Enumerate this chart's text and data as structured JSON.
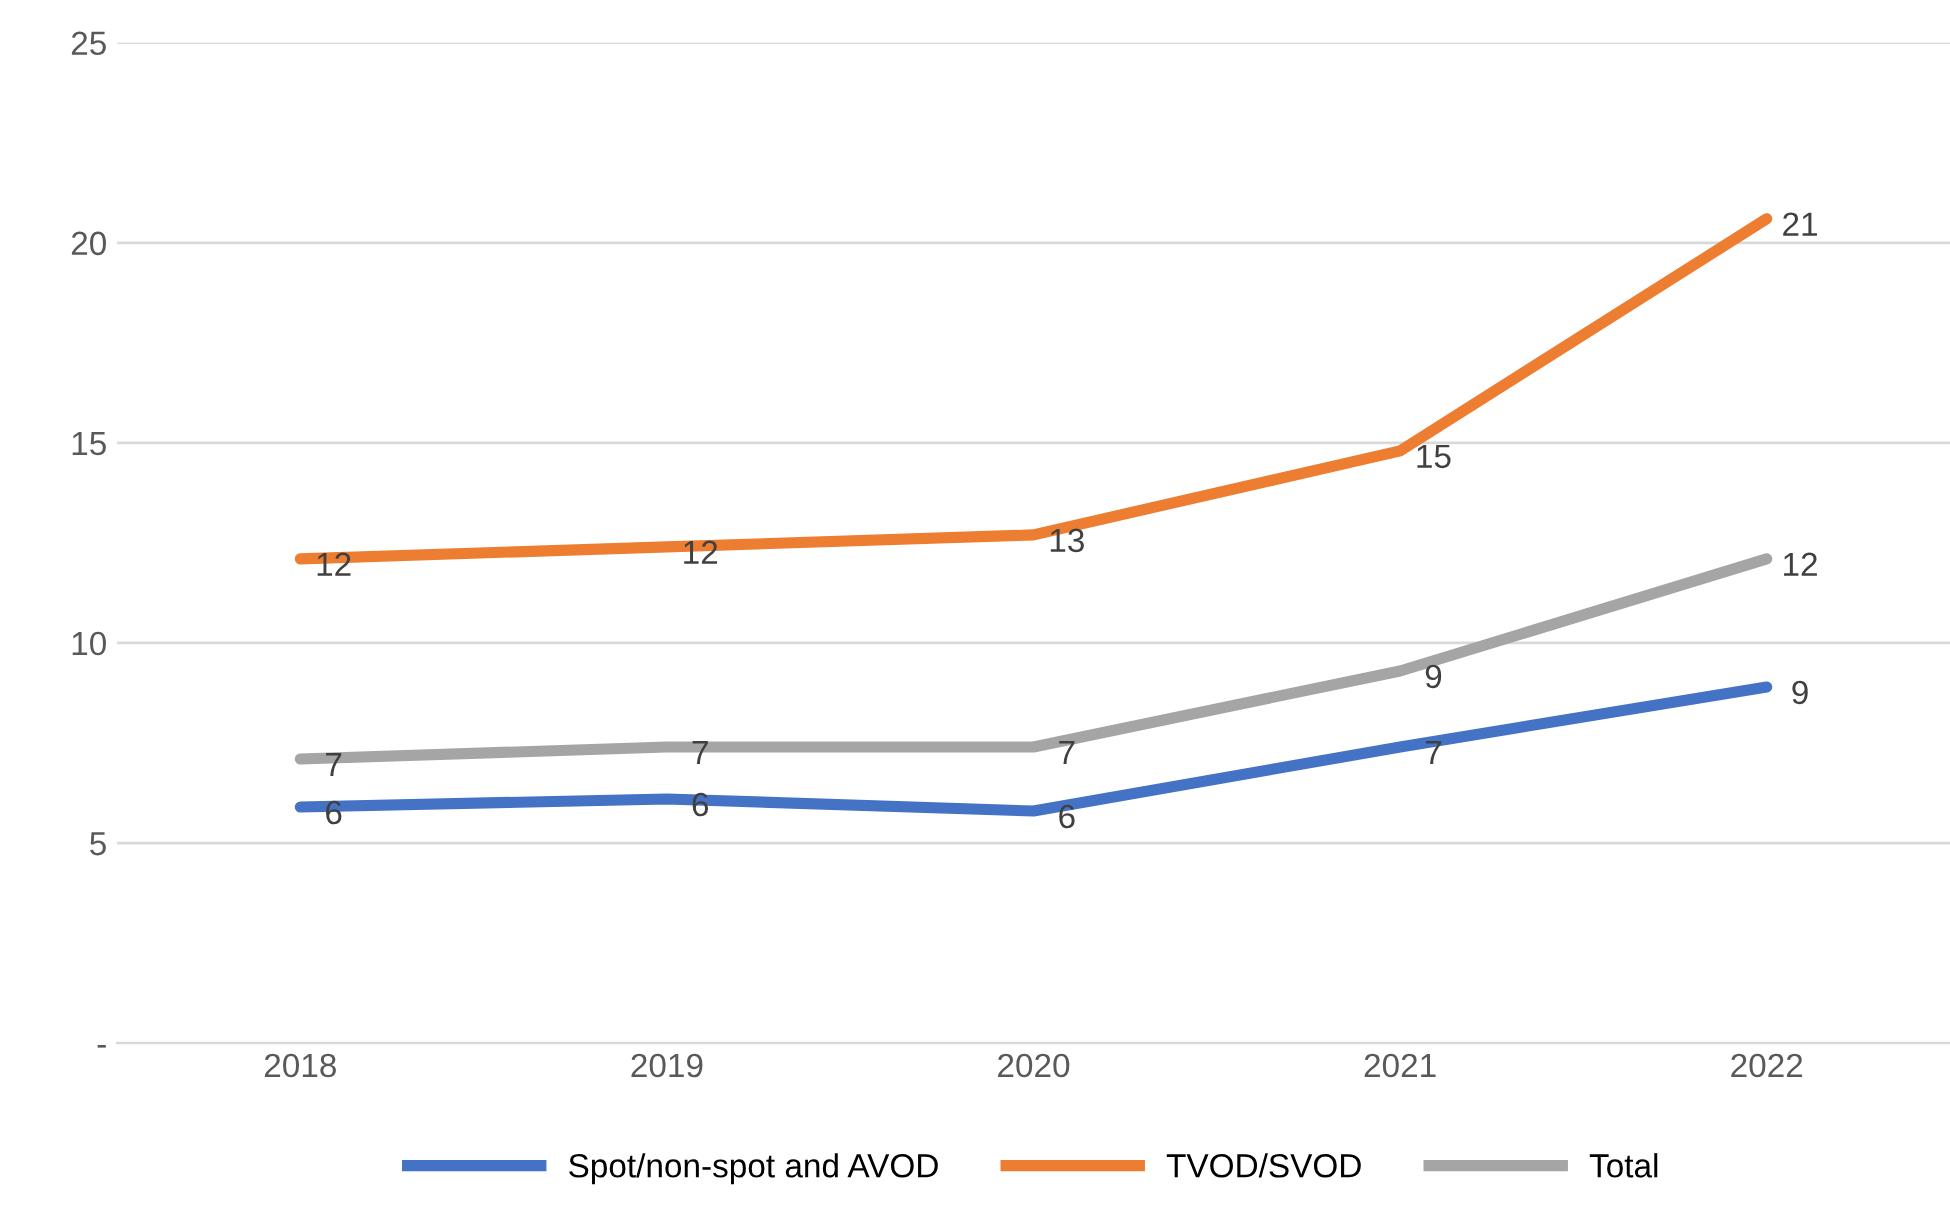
{
  "chart_data": {
    "type": "line",
    "categories": [
      "2018",
      "2019",
      "2020",
      "2021",
      "2022"
    ],
    "series": [
      {
        "name": "Spot/non-spot and AVOD",
        "color": "#4472c4",
        "values": [
          5.9,
          6.1,
          5.8,
          7.4,
          8.9
        ],
        "value_labels": [
          "6",
          "6",
          "6",
          "7",
          "9"
        ]
      },
      {
        "name": "TVOD/SVOD",
        "color": "#ed7d31",
        "values": [
          12.1,
          12.4,
          12.7,
          14.8,
          20.6
        ],
        "value_labels": [
          "12",
          "12",
          "13",
          "15",
          "21"
        ]
      },
      {
        "name": "Total",
        "color": "#a5a5a5",
        "values": [
          7.1,
          7.4,
          7.4,
          9.3,
          12.1
        ],
        "value_labels": [
          "7",
          "7",
          "7",
          "9",
          "12"
        ]
      }
    ],
    "ylim": [
      0,
      25
    ],
    "yticks": [
      {
        "value": 0,
        "label": "-"
      },
      5,
      10,
      15,
      20,
      25
    ],
    "grid": "y",
    "legend": "bottom",
    "marker": "none",
    "line_style": "solid"
  }
}
